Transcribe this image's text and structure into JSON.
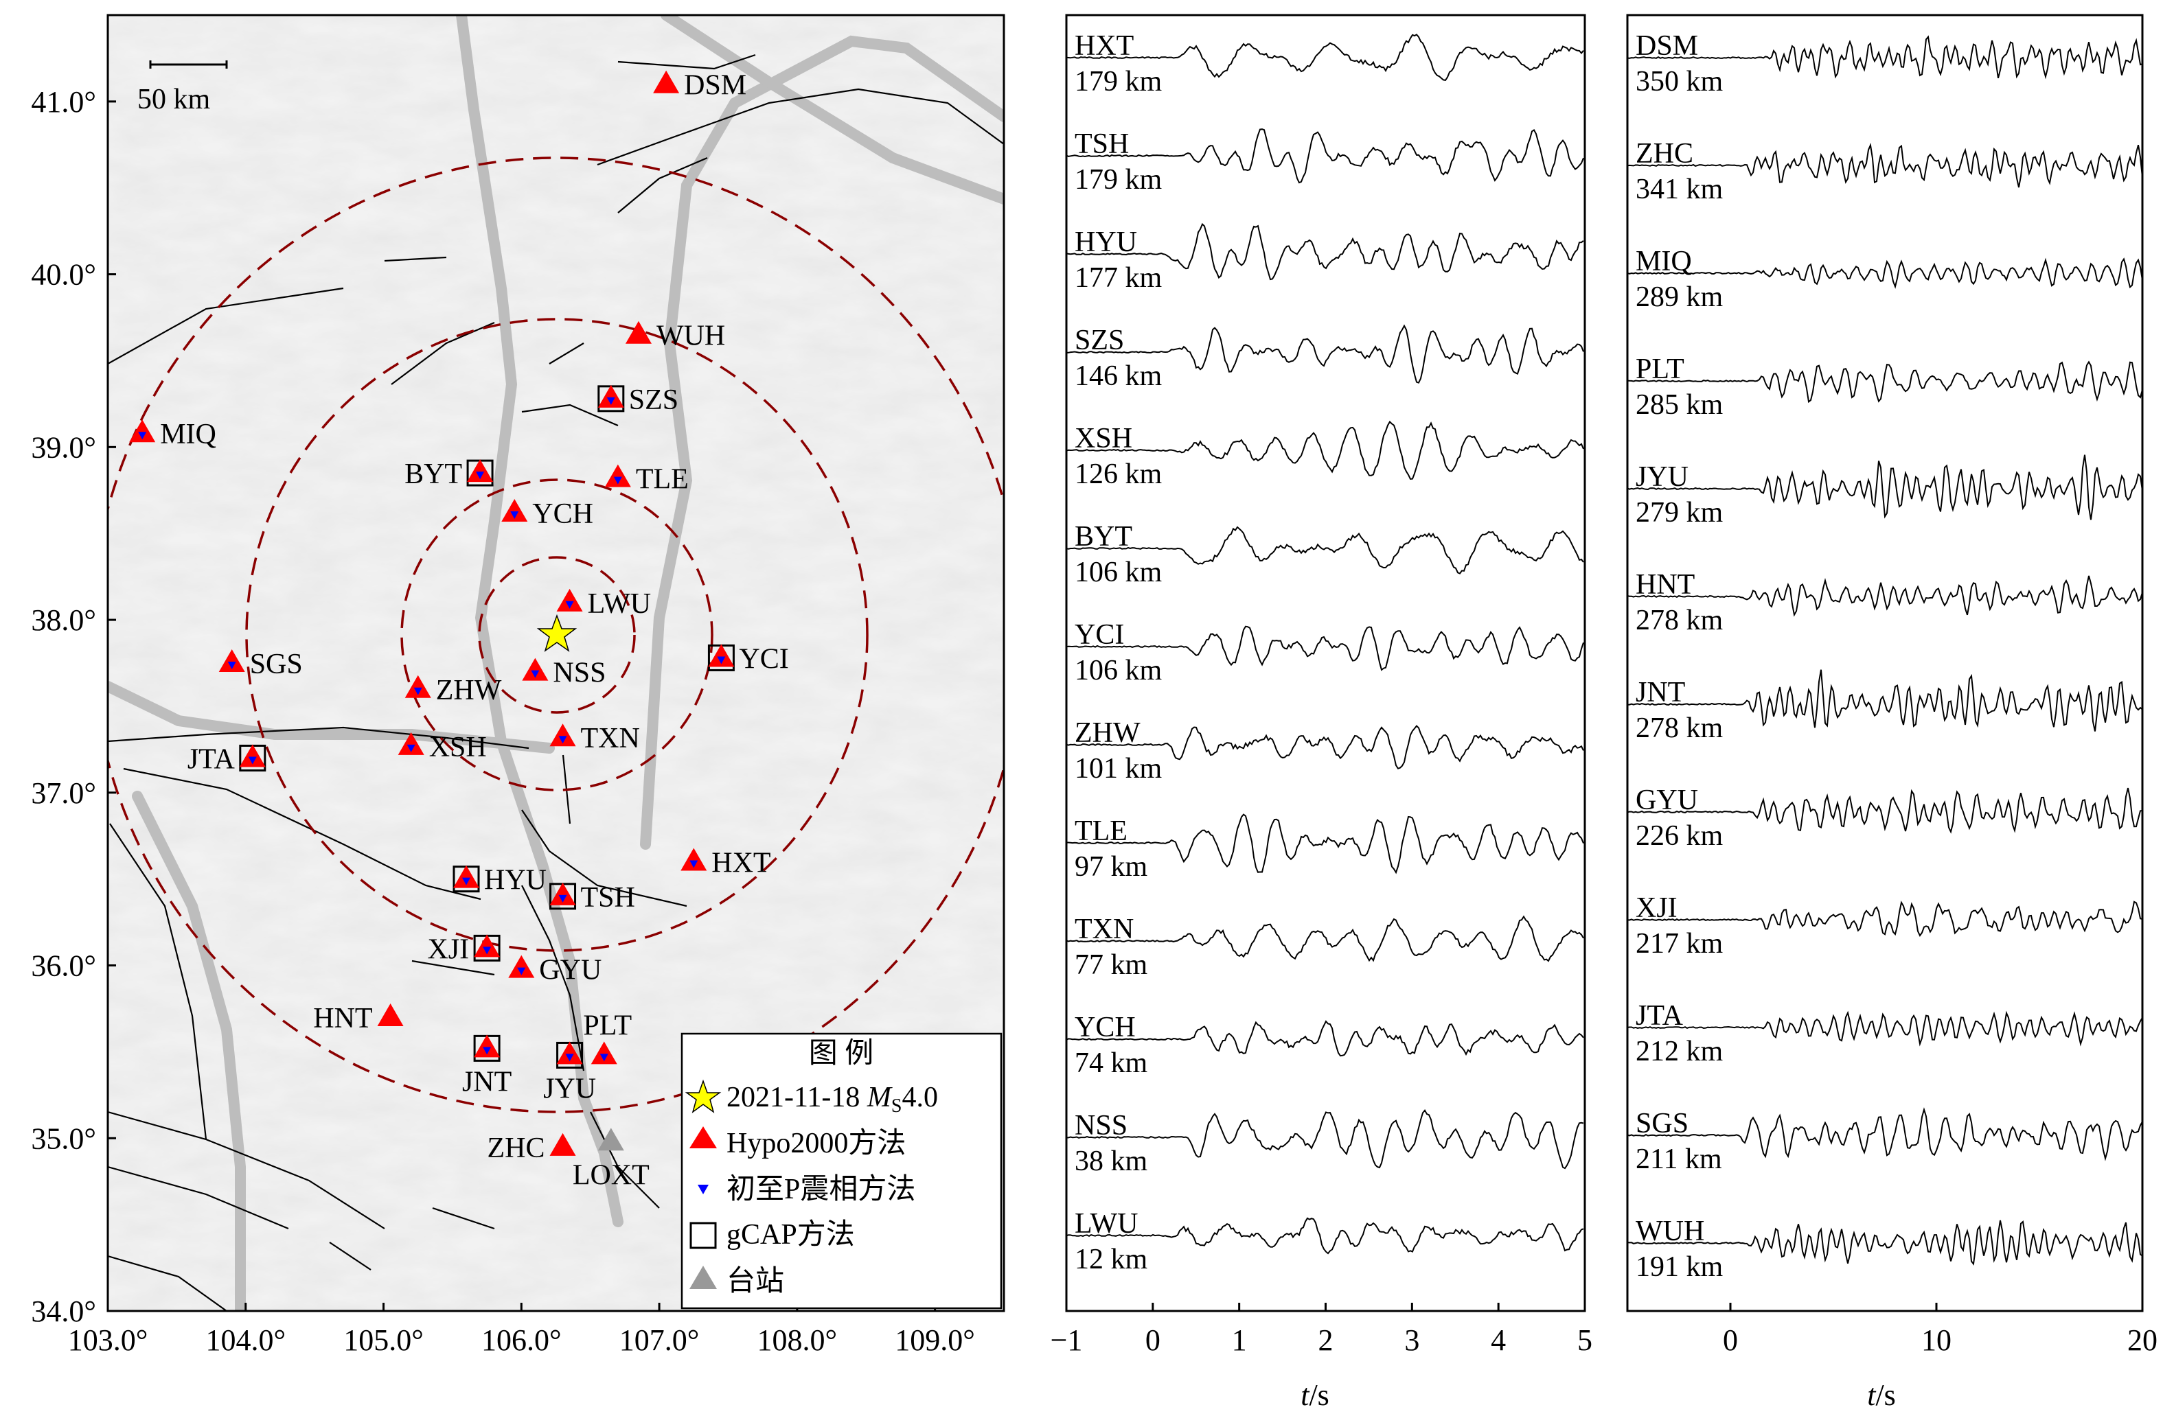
{
  "map": {
    "lon_ticks": [
      "103.0°",
      "104.0°",
      "105.0°",
      "106.0°",
      "107.0°",
      "108.0°",
      "109.0°"
    ],
    "lat_ticks": [
      "34.0°",
      "35.0°",
      "36.0°",
      "37.0°",
      "38.0°",
      "39.0°",
      "40.0°",
      "41.0°"
    ],
    "lon_range": [
      103.0,
      109.5
    ],
    "lat_range": [
      34.0,
      41.5
    ],
    "scale_bar_label": "50 km",
    "epicenter": {
      "lon": 106.3,
      "lat": 38.0
    },
    "ring_radii_km": [
      50,
      100,
      200,
      300
    ],
    "stations": [
      {
        "code": "DSM",
        "lon": 107.05,
        "lat": 41.1,
        "hypo": true,
        "p": false,
        "gcap": false,
        "label_side": "right"
      },
      {
        "code": "WUH",
        "lon": 106.85,
        "lat": 39.65,
        "hypo": true,
        "p": false,
        "gcap": false,
        "label_side": "right"
      },
      {
        "code": "SZS",
        "lon": 106.65,
        "lat": 39.28,
        "hypo": true,
        "p": true,
        "gcap": true,
        "label_side": "right"
      },
      {
        "code": "MIQ",
        "lon": 103.25,
        "lat": 39.08,
        "hypo": true,
        "p": true,
        "gcap": false,
        "label_side": "right"
      },
      {
        "code": "BYT",
        "lon": 105.7,
        "lat": 38.85,
        "hypo": true,
        "p": true,
        "gcap": true,
        "label_side": "left"
      },
      {
        "code": "TLE",
        "lon": 106.7,
        "lat": 38.82,
        "hypo": true,
        "p": true,
        "gcap": false,
        "label_side": "right"
      },
      {
        "code": "YCH",
        "lon": 105.95,
        "lat": 38.62,
        "hypo": true,
        "p": true,
        "gcap": false,
        "label_side": "right"
      },
      {
        "code": "LWU",
        "lon": 106.35,
        "lat": 38.1,
        "hypo": true,
        "p": true,
        "gcap": false,
        "label_side": "right"
      },
      {
        "code": "SGS",
        "lon": 103.9,
        "lat": 37.75,
        "hypo": true,
        "p": true,
        "gcap": false,
        "label_side": "right"
      },
      {
        "code": "YCI",
        "lon": 107.45,
        "lat": 37.78,
        "hypo": true,
        "p": true,
        "gcap": true,
        "label_side": "right"
      },
      {
        "code": "NSS",
        "lon": 106.1,
        "lat": 37.7,
        "hypo": true,
        "p": true,
        "gcap": false,
        "label_side": "right"
      },
      {
        "code": "ZHW",
        "lon": 105.25,
        "lat": 37.6,
        "hypo": true,
        "p": true,
        "gcap": false,
        "label_side": "right"
      },
      {
        "code": "TXN",
        "lon": 106.3,
        "lat": 37.32,
        "hypo": true,
        "p": true,
        "gcap": false,
        "label_side": "right"
      },
      {
        "code": "XSH",
        "lon": 105.2,
        "lat": 37.27,
        "hypo": true,
        "p": true,
        "gcap": false,
        "label_side": "right"
      },
      {
        "code": "JTA",
        "lon": 104.05,
        "lat": 37.2,
        "hypo": true,
        "p": true,
        "gcap": true,
        "label_side": "left"
      },
      {
        "code": "HXT",
        "lon": 107.25,
        "lat": 36.6,
        "hypo": true,
        "p": true,
        "gcap": false,
        "label_side": "right"
      },
      {
        "code": "HYU",
        "lon": 105.6,
        "lat": 36.5,
        "hypo": true,
        "p": true,
        "gcap": true,
        "label_side": "right"
      },
      {
        "code": "TSH",
        "lon": 106.3,
        "lat": 36.4,
        "hypo": true,
        "p": true,
        "gcap": true,
        "label_side": "right"
      },
      {
        "code": "XJI",
        "lon": 105.75,
        "lat": 36.1,
        "hypo": true,
        "p": true,
        "gcap": true,
        "label_side": "left"
      },
      {
        "code": "GYU",
        "lon": 106.0,
        "lat": 35.98,
        "hypo": true,
        "p": true,
        "gcap": false,
        "label_side": "right"
      },
      {
        "code": "HNT",
        "lon": 105.05,
        "lat": 35.7,
        "hypo": true,
        "p": false,
        "gcap": false,
        "label_side": "left"
      },
      {
        "code": "PLT",
        "lon": 106.6,
        "lat": 35.48,
        "hypo": true,
        "p": true,
        "gcap": false,
        "label_side": "above"
      },
      {
        "code": "JNT",
        "lon": 105.75,
        "lat": 35.52,
        "hypo": true,
        "p": true,
        "gcap": true,
        "label_side": "below"
      },
      {
        "code": "JYU",
        "lon": 106.35,
        "lat": 35.48,
        "hypo": true,
        "p": true,
        "gcap": true,
        "label_side": "below"
      },
      {
        "code": "ZHC",
        "lon": 106.3,
        "lat": 34.95,
        "hypo": true,
        "p": false,
        "gcap": false,
        "label_side": "left"
      },
      {
        "code": "LOXT",
        "lon": 106.65,
        "lat": 34.98,
        "hypo": false,
        "p": false,
        "gcap": false,
        "station": true,
        "label_side": "below"
      }
    ],
    "legend": {
      "title": "图  例",
      "event_prefix": "2021-11-18 ",
      "event_mag_m": "M",
      "event_mag_sub": "S",
      "event_mag_val": "4.0",
      "hypo": "Hypo2000方法",
      "p": "初至P震相方法",
      "gcap": "gCAP方法",
      "station": "台站"
    },
    "colors": {
      "hypo": "#ff0000",
      "p": "#0000ff",
      "star": "#ffff00",
      "ring": "#8b0000",
      "station": "#999999"
    }
  },
  "waveforms_left": {
    "xlabel_t": "t",
    "xlabel_unit": "/s",
    "x_range": [
      -1,
      5
    ],
    "x_ticks": [
      "−1",
      "0",
      "1",
      "2",
      "3",
      "4",
      "5"
    ],
    "traces": [
      {
        "name": "HXT",
        "dist": "179 km"
      },
      {
        "name": "TSH",
        "dist": "179 km"
      },
      {
        "name": "HYU",
        "dist": "177 km"
      },
      {
        "name": "SZS",
        "dist": "146 km"
      },
      {
        "name": "XSH",
        "dist": "126 km"
      },
      {
        "name": "BYT",
        "dist": "106 km"
      },
      {
        "name": "YCI",
        "dist": "106 km"
      },
      {
        "name": "ZHW",
        "dist": "101 km"
      },
      {
        "name": "TLE",
        "dist": "97 km"
      },
      {
        "name": "TXN",
        "dist": "77 km"
      },
      {
        "name": "YCH",
        "dist": "74 km"
      },
      {
        "name": "NSS",
        "dist": "38 km"
      },
      {
        "name": "LWU",
        "dist": "12 km"
      }
    ]
  },
  "waveforms_right": {
    "xlabel_t": "t",
    "xlabel_unit": "/s",
    "x_range": [
      -5,
      20
    ],
    "x_ticks": [
      "0",
      "10",
      "20"
    ],
    "traces": [
      {
        "name": "DSM",
        "dist": "350 km"
      },
      {
        "name": "ZHC",
        "dist": "341 km"
      },
      {
        "name": "MIQ",
        "dist": "289 km"
      },
      {
        "name": "PLT",
        "dist": "285 km"
      },
      {
        "name": "JYU",
        "dist": "279 km"
      },
      {
        "name": "HNT",
        "dist": "278 km"
      },
      {
        "name": "JNT",
        "dist": "278 km"
      },
      {
        "name": "GYU",
        "dist": "226 km"
      },
      {
        "name": "XJI",
        "dist": "217 km"
      },
      {
        "name": "JTA",
        "dist": "212 km"
      },
      {
        "name": "SGS",
        "dist": "211 km"
      },
      {
        "name": "WUH",
        "dist": "191 km"
      }
    ]
  }
}
